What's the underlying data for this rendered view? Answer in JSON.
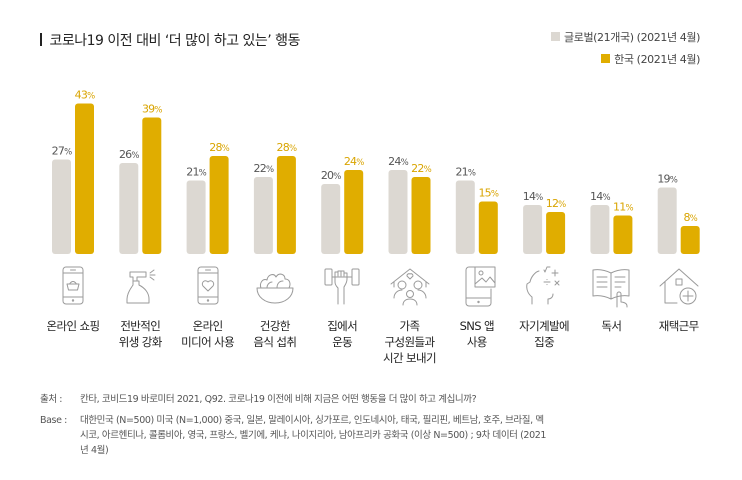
{
  "title": "코로나19 이전 대비 ‘더 많이 하고 있는’ 행동",
  "colors": {
    "global": "#dcd8d2",
    "korea": "#e0ad00",
    "global_label": "#555555",
    "korea_label": "#d9a400"
  },
  "chart_data": {
    "type": "bar",
    "title": "코로나19 이전 대비 ‘더 많이 하고 있는’ 행동",
    "xlabel": "",
    "ylabel": "",
    "ylim": [
      0,
      45
    ],
    "grid": false,
    "legend_position": "top-right",
    "categories": [
      "온라인 쇼핑",
      "전반적인 위생 강화",
      "온라인 미디어 사용",
      "건강한 음식 섭취",
      "집에서 운동",
      "가족 구성원들과 시간 보내기",
      "SNS 앱 사용",
      "자기계발에 집중",
      "독서",
      "재택근무"
    ],
    "series": [
      {
        "name": "글로벌(21개국) (2021년 4월)",
        "values": [
          27,
          26,
          21,
          22,
          20,
          24,
          21,
          14,
          14,
          19
        ]
      },
      {
        "name": "한국 (2021년 4월)",
        "values": [
          43,
          39,
          28,
          28,
          24,
          22,
          15,
          12,
          11,
          8
        ]
      }
    ],
    "value_suffix": "%"
  },
  "legend": [
    {
      "label": "글로벌(21개국) (2021년 4월)"
    },
    {
      "label": "한국 (2021년 4월)"
    }
  ],
  "x_labels": [
    {
      "lines": [
        "온라인 쇼핑"
      ],
      "icon": "smartphone-shopping-basket-icon"
    },
    {
      "lines": [
        "전반적인",
        "위생 강화"
      ],
      "icon": "spray-bottle-icon"
    },
    {
      "lines": [
        "온라인",
        "미디어 사용"
      ],
      "icon": "smartphone-heart-icon"
    },
    {
      "lines": [
        "건강한",
        "음식 섭취"
      ],
      "icon": "salad-bowl-icon"
    },
    {
      "lines": [
        "집에서",
        "운동"
      ],
      "icon": "dumbbell-hand-icon"
    },
    {
      "lines": [
        "가족",
        "구성원들과",
        "시간 보내기"
      ],
      "icon": "family-house-icon"
    },
    {
      "lines": [
        "SNS 앱",
        "사용"
      ],
      "icon": "tablet-image-icon"
    },
    {
      "lines": [
        "자기계발에",
        "집중"
      ],
      "icon": "head-math-icon"
    },
    {
      "lines": [
        "독서"
      ],
      "icon": "open-book-icon"
    },
    {
      "lines": [
        "재택근무"
      ],
      "icon": "house-plus-icon"
    }
  ],
  "notes": {
    "source_key": "출처 :",
    "source_val": "칸타, 코비드19 바로미터 2021, Q92. 코로나19 이전에 비해 지금은 어떤 행동을 더 많이 하고 계십니까?",
    "base_key": "Base :",
    "base_val": "대한민국 (N=500) 미국 (N=1,000) 중국, 일본, 말레이시아, 싱가포르, 인도네시아, 태국, 필리핀, 베트남, 호주, 브라질, 멕시코, 아르헨티나, 콜롬비아, 영국, 프랑스, 벨기에, 케냐, 나이지리아, 남아프리카 공화국 (이상 N=500) ; 9차 데이터 (2021년 4월)"
  }
}
